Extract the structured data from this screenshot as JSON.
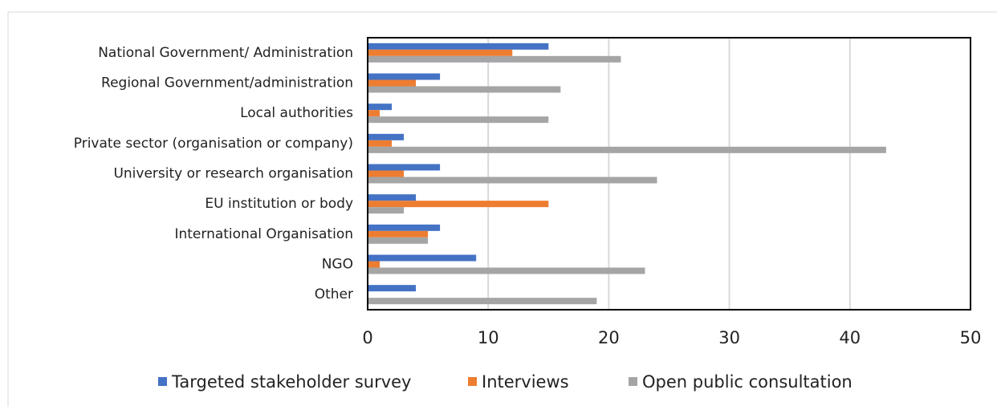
{
  "chart_data": {
    "type": "hbar",
    "categories": [
      "National Government/ Administration",
      "Regional Government/administration",
      "Local authorities",
      "Private sector (organisation or company)",
      "University or research organisation",
      "EU institution or body",
      "International Organisation",
      "NGO",
      "Other"
    ],
    "series": [
      {
        "name": "Targeted stakeholder survey",
        "color": "#4472c4",
        "values": [
          15,
          6,
          2,
          3,
          6,
          4,
          6,
          9,
          4
        ]
      },
      {
        "name": "Interviews",
        "color": "#ed7d31",
        "values": [
          12,
          4,
          1,
          2,
          3,
          15,
          5,
          1,
          0
        ]
      },
      {
        "name": "Open public consultation",
        "color": "#a5a5a5",
        "values": [
          21,
          16,
          15,
          43,
          24,
          3,
          5,
          23,
          19
        ]
      }
    ],
    "xlim": [
      0,
      50
    ],
    "xticks": [
      0,
      10,
      20,
      30,
      40,
      50
    ],
    "grid": true,
    "legend": "bottom"
  }
}
